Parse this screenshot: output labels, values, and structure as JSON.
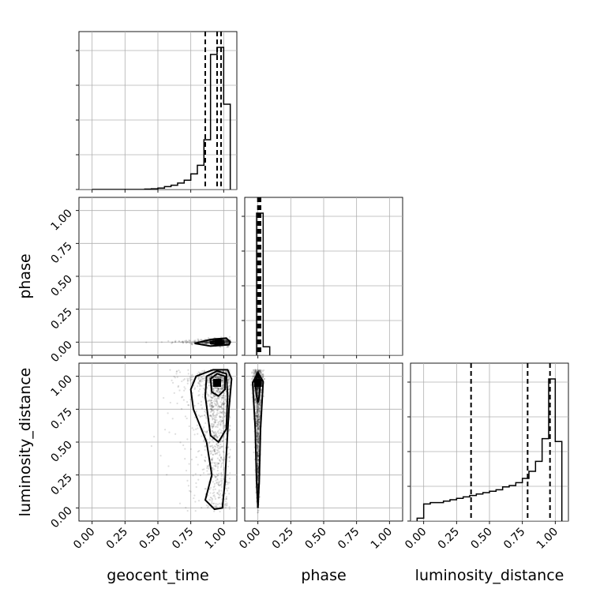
{
  "chart_data": {
    "type": "corner",
    "parameters": [
      "geocent_time",
      "phase",
      "luminosity_distance"
    ],
    "axis_range": [
      -0.1,
      1.1
    ],
    "ticks": [
      0.0,
      0.25,
      0.5,
      0.75,
      1.0
    ],
    "tick_labels": [
      "0.00",
      "0.25",
      "0.50",
      "0.75",
      "1.00"
    ],
    "grid": true,
    "hist_y_ticks": [
      0,
      0.22,
      0.44,
      0.66,
      0.88
    ],
    "marginals": [
      {
        "parameter": "geocent_time",
        "bin_edges": [
          0.0,
          0.05,
          0.1,
          0.15,
          0.2,
          0.25,
          0.3,
          0.35,
          0.4,
          0.45,
          0.5,
          0.55,
          0.6,
          0.65,
          0.7,
          0.75,
          0.8,
          0.85,
          0.9,
          0.95,
          1.0,
          1.05
        ],
        "counts": [
          0,
          0,
          0,
          0,
          0,
          0,
          0,
          0,
          0.003,
          0.005,
          0.01,
          0.02,
          0.03,
          0.045,
          0.065,
          0.11,
          0.17,
          0.35,
          0.95,
          1.0,
          0.6
        ],
        "quantiles": [
          0.86,
          0.95,
          0.98
        ]
      },
      {
        "parameter": "phase",
        "bin_edges": [
          -0.01,
          0.04,
          0.09
        ],
        "counts": [
          1.0,
          0.06
        ],
        "quantiles": [
          0.0,
          0.01,
          0.02
        ]
      },
      {
        "parameter": "luminosity_distance",
        "bin_edges": [
          -0.05,
          0.0,
          0.05,
          0.1,
          0.15,
          0.2,
          0.25,
          0.3,
          0.35,
          0.4,
          0.45,
          0.5,
          0.55,
          0.6,
          0.65,
          0.7,
          0.75,
          0.8,
          0.85,
          0.9,
          0.95,
          1.0,
          1.05
        ],
        "counts": [
          0.02,
          0.12,
          0.13,
          0.13,
          0.14,
          0.15,
          0.16,
          0.17,
          0.18,
          0.19,
          0.2,
          0.21,
          0.22,
          0.24,
          0.25,
          0.27,
          0.3,
          0.35,
          0.42,
          0.58,
          1.0,
          0.56
        ],
        "quantiles": [
          0.36,
          0.79,
          0.96
        ]
      }
    ],
    "pairs": [
      {
        "x": "geocent_time",
        "y": "phase",
        "contours": [
          [
            [
              0.78,
              -0.01
            ],
            [
              0.9,
              -0.03
            ],
            [
              1.04,
              -0.02
            ],
            [
              1.05,
              0.0
            ],
            [
              1.02,
              0.03
            ],
            [
              0.9,
              0.02
            ],
            [
              0.78,
              -0.01
            ]
          ],
          [
            [
              0.9,
              -0.01
            ],
            [
              0.95,
              -0.015
            ],
            [
              1.0,
              -0.01
            ],
            [
              1.0,
              0.01
            ],
            [
              0.95,
              0.01
            ],
            [
              0.9,
              0.0
            ]
          ]
        ],
        "peak": [
          0.96,
          0.0
        ]
      },
      {
        "x": "geocent_time",
        "y": "luminosity_distance",
        "contours": [
          [
            [
              0.86,
              0.06
            ],
            [
              0.91,
              0.25
            ],
            [
              0.87,
              0.5
            ],
            [
              0.77,
              0.75
            ],
            [
              0.75,
              0.9
            ],
            [
              0.79,
              1.0
            ],
            [
              0.92,
              1.05
            ],
            [
              1.03,
              1.05
            ],
            [
              1.06,
              0.98
            ],
            [
              1.04,
              0.75
            ],
            [
              1.02,
              0.4
            ],
            [
              1.01,
              0.2
            ],
            [
              0.99,
              0.0
            ],
            [
              0.93,
              -0.01
            ],
            [
              0.86,
              0.06
            ]
          ],
          [
            [
              0.87,
              1.0
            ],
            [
              0.86,
              0.85
            ],
            [
              0.9,
              0.55
            ],
            [
              0.96,
              0.5
            ],
            [
              1.02,
              0.6
            ],
            [
              1.03,
              0.85
            ],
            [
              1.02,
              1.02
            ],
            [
              0.95,
              1.04
            ],
            [
              0.87,
              1.0
            ]
          ],
          [
            [
              0.9,
              0.98
            ],
            [
              0.91,
              0.88
            ],
            [
              0.96,
              0.85
            ],
            [
              1.01,
              0.9
            ],
            [
              1.01,
              1.0
            ],
            [
              0.95,
              1.02
            ],
            [
              0.9,
              0.98
            ]
          ]
        ],
        "peak": [
          0.95,
          0.95
        ]
      },
      {
        "x": "phase",
        "y": "luminosity_distance",
        "contours": [
          [
            [
              -0.04,
              0.95
            ],
            [
              0.0,
              1.03
            ],
            [
              0.04,
              0.96
            ],
            [
              0.02,
              0.6
            ],
            [
              0.01,
              0.2
            ],
            [
              0.0,
              0.0
            ],
            [
              -0.01,
              0.2
            ],
            [
              -0.02,
              0.6
            ],
            [
              -0.04,
              0.95
            ]
          ],
          [
            [
              -0.02,
              0.95
            ],
            [
              0.0,
              1.01
            ],
            [
              0.02,
              0.96
            ],
            [
              0.01,
              0.85
            ],
            [
              0.0,
              0.8
            ],
            [
              -0.01,
              0.85
            ],
            [
              -0.02,
              0.95
            ]
          ]
        ],
        "peak": [
          0.0,
          0.95
        ]
      }
    ]
  }
}
